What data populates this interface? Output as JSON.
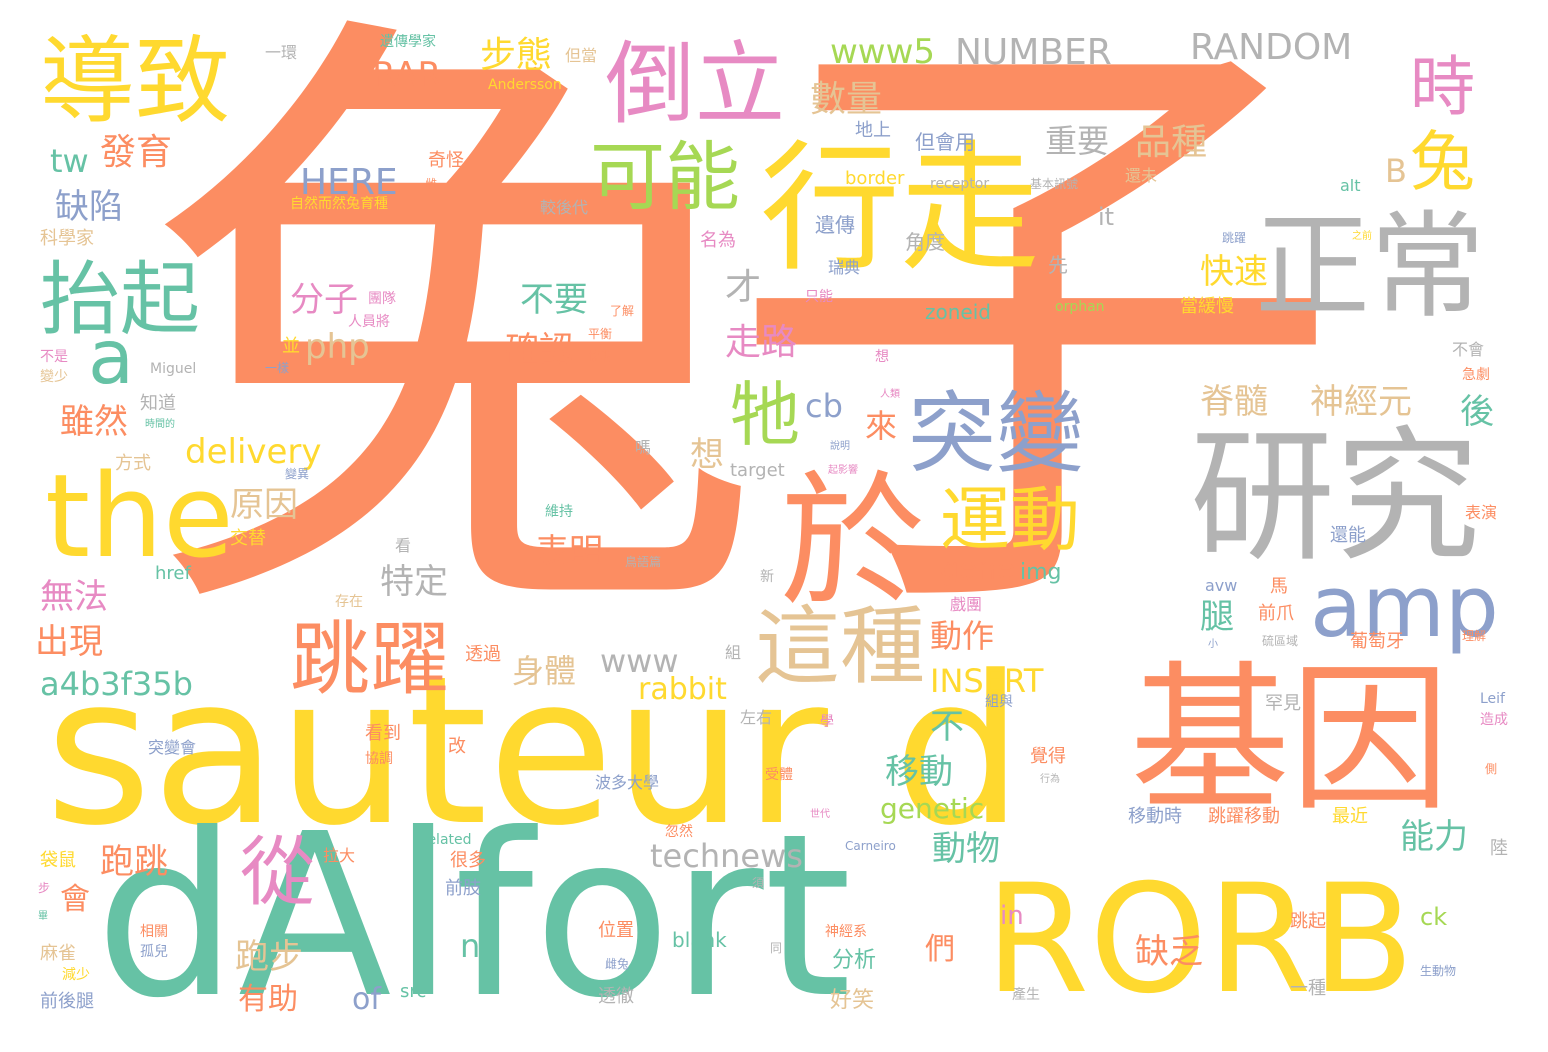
{
  "palette": {
    "orange": "#fc8d62",
    "teal": "#66c2a5",
    "blue": "#8da0cb",
    "pink": "#e78ac3",
    "green": "#a6d854",
    "yellow": "#ffd92f",
    "tan": "#e5c494",
    "grey": "#b3b3b3",
    "background": "#ffffff"
  },
  "words": {
    "rabbit_main": "兔子",
    "sauteur": "sauteur d",
    "alfort": "dAlfort",
    "rorb": "RORB",
    "gene": "基因",
    "research": "研究",
    "walk": "行走",
    "normal": "正常",
    "at": "於",
    "the": "the",
    "mutation": "突變",
    "amp": "amp",
    "inverted": "倒立",
    "cause": "導致",
    "possible": "可能",
    "lift": "抬起",
    "jump": "跳躍",
    "this_kind": "這種",
    "from": "從",
    "movement": "運動",
    "it": "牠",
    "a": "a",
    "time": "時",
    "rabbit_small": "兔",
    "www5": "www5",
    "number": "NUMBER",
    "random": "RANDOM",
    "gait": "步態",
    "rar": "RAR",
    "quantity": "數量",
    "breed": "品種",
    "important": "重要",
    "tw": "tw",
    "develop": "發育",
    "here": "HERE",
    "defect": "缺陷",
    "b": "B",
    "fast": "快速",
    "molecule": "分子",
    "dont": "不要",
    "confirm": "確認",
    "php": "php",
    "only": "才",
    "walking": "走路",
    "spinal_cord": "脊髓",
    "neuron": "神經元",
    "after": "後",
    "although": "雖然",
    "delivery": "delivery",
    "cb": "cb",
    "come": "來",
    "think": "想",
    "reason": "原因",
    "indicate": "表明",
    "specific": "特定",
    "unable": "無法",
    "appear": "出現",
    "a4b3f35b": "a4b3f35b",
    "www": "www",
    "body": "身體",
    "action": "動作",
    "gene_en": "gene",
    "img": "img",
    "leg": "腿",
    "insert": "INSERT",
    "rabbit_en": "rabbit",
    "not": "不",
    "move": "移動",
    "genetic": "genetic",
    "ability": "能力",
    "lack": "缺乏",
    "technews": "technews",
    "animal": "動物",
    "in": "in",
    "ck": "ck",
    "hop": "跑跳",
    "will": "會",
    "run": "跑步",
    "helpful": "有助",
    "n": "n",
    "of": "of",
    "they": "們",
    "analyze": "分析",
    "funny": "好笑",
    "inheritance": "遺傳",
    "angle": "角度",
    "sweden": "瑞典",
    "first": "先",
    "only_can": "只能",
    "genetics_scientist": "遺傳學家",
    "one_ring": "一環",
    "but_when": "但當",
    "andersson": "Andersson",
    "ground": "地上",
    "but_will": "但會用",
    "strange": "奇怪",
    "hare": "雌",
    "border": "border",
    "receptor": "receptor",
    "basic": "基本訊號",
    "naturally": "自然而然兔育種",
    "later_gen": "較後代",
    "not_yet": "還未",
    "alt": "alt",
    "scientist": "科學家",
    "named": "名為",
    "it_en": "it",
    "jump_small": "跳躍",
    "before": "之前",
    "team": "團隊",
    "personnel": "人員將",
    "balance": "平衡",
    "coordinate": "協調",
    "not_is": "不是",
    "reduce_less": "變少",
    "miguel": "Miguel",
    "level_ground": "一樣",
    "and": "並",
    "understand": "了解",
    "zoneid": "zoneid",
    "orphan": "orphan",
    "when_slow": "當緩慢",
    "doesnt": "不會",
    "sudden": "急劇",
    "know": "知道",
    "interval": "時間的",
    "way": "方式",
    "alternate": "交替",
    "person": "人類",
    "say": "說明",
    "rethink": "想",
    "horse_ask": "嗎",
    "variation": "變異",
    "target": "target",
    "effect_area": "起影響",
    "maintain": "維持",
    "bird": "鳥語篇",
    "perform": "表演",
    "still_can": "還能",
    "look": "看",
    "href": "href",
    "new": "新",
    "exist": "存在",
    "opera": "戲團",
    "horse": "馬",
    "forepaw": "前爪",
    "portugal": "葡萄牙",
    "region": "硫區域",
    "avw": "avw",
    "small": "小",
    "understand2": "理解",
    "pass_through": "透過",
    "group": "組",
    "leif": "Leif",
    "cause2": "造成",
    "pass_on": "組與",
    "rare": "罕見",
    "see": "看到",
    "change": "改",
    "left_right": "左右",
    "learn": "學",
    "feel": "覺得",
    "mutation_will": "突變會",
    "coordinate2": "協調",
    "boston": "波多大學",
    "bear": "受體",
    "line": "行為",
    "side": "側",
    "bag_mouse": "袋鼠",
    "pull_big": "拉大",
    "related": "related",
    "suddenly": "忽然",
    "carneiro": "Carneiro",
    "move_when": "移動時",
    "jump_move": "跳躍移動",
    "recent": "最近",
    "land": "陸",
    "many": "很多",
    "forelimb": "前肢",
    "generation": "世代",
    "must": "須",
    "one_step": "步",
    "mahjong": "麻雀",
    "related2": "相關",
    "orphan2": "孤兒",
    "position": "位置",
    "blank": "blank",
    "together": "同",
    "nervous_system": "神經系",
    "jump_up": "跳起",
    "female_rabbit": "雌兔",
    "decrease": "減少",
    "front_back_leg": "前後腿",
    "src": "src",
    "thorough": "透徹",
    "a_kind": "一種",
    "produce": "產生",
    "creature": "生動物",
    "bi": "畢"
  }
}
